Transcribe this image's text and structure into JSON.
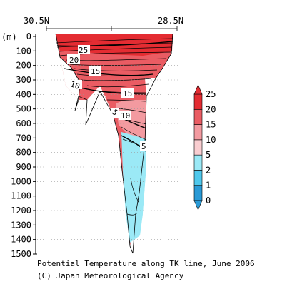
{
  "chart_data": {
    "type": "heatmap",
    "title": "Potential Temperature along TK line, June 2006",
    "credit": "(C) Japan Meteorological Agency",
    "x_tick_labels": [
      "30.5N",
      "28.5N"
    ],
    "ylabel": "(m)",
    "y_ticks": [
      0,
      100,
      200,
      300,
      400,
      500,
      600,
      700,
      800,
      900,
      1000,
      1100,
      1200,
      1300,
      1400,
      1500
    ],
    "ylim": [
      0,
      1500
    ],
    "y_inverted": true,
    "grid": true,
    "colorbar": {
      "levels": [
        0,
        1,
        2,
        5,
        10,
        15,
        20,
        25
      ],
      "colors": [
        "#2a9ad6",
        "#4fc8ec",
        "#9be9f6",
        "#f9cdd0",
        "#f39aa0",
        "#ea5c63",
        "#e42c32"
      ]
    },
    "contour_labels": [
      {
        "value": "25",
        "depth": 100
      },
      {
        "value": "20",
        "depth": 170
      },
      {
        "value": "15",
        "depth": 245
      },
      {
        "value": "10",
        "depth": 345
      },
      {
        "value": "15",
        "depth": 415
      },
      {
        "value": "5",
        "depth": 560
      },
      {
        "value": "10",
        "depth": 545
      },
      {
        "value": "5",
        "depth": 775
      }
    ]
  }
}
